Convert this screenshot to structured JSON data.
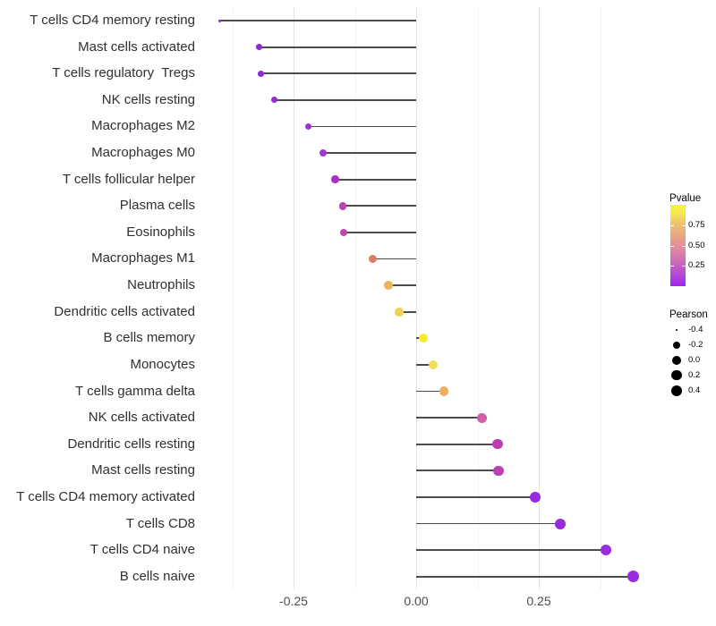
{
  "chart_data": {
    "type": "scatter",
    "variant": "lollipop",
    "title": "",
    "xlabel": "",
    "ylabel": "",
    "xlim": [
      -0.44,
      0.48
    ],
    "x_ticks": [
      {
        "value": -0.25,
        "label": "-0.25"
      },
      {
        "value": 0.0,
        "label": "0.00"
      },
      {
        "value": 0.25,
        "label": "0.25"
      }
    ],
    "grid": "vertical major and minor gridlines, no horizontal gridlines, no axis lines",
    "minor_ticks": [
      -0.375,
      -0.125,
      0.125,
      0.375
    ],
    "points": [
      {
        "label": "T cells CD4 memory resting",
        "pearson": -0.4,
        "color": "#8a2bd5",
        "diameter": 3.0
      },
      {
        "label": "Mast cells activated",
        "pearson": -0.32,
        "color": "#8d2bd2",
        "diameter": 6.6
      },
      {
        "label": "T cells regulatory  Tregs",
        "pearson": -0.316,
        "color": "#8e2cd3",
        "diameter": 6.7
      },
      {
        "label": "NK cells resting",
        "pearson": -0.29,
        "color": "#9130d4",
        "diameter": 7.1
      },
      {
        "label": "Macrophages M2",
        "pearson": -0.22,
        "color": "#9e33d3",
        "diameter": 7.7
      },
      {
        "label": "Macrophages M0",
        "pearson": -0.19,
        "color": "#a436d4",
        "diameter": 8.1
      },
      {
        "label": "T cells follicular helper",
        "pearson": -0.165,
        "color": "#a832c0",
        "diameter": 8.4
      },
      {
        "label": "Plasma cells",
        "pearson": -0.15,
        "color": "#bc42ae",
        "diameter": 8.6
      },
      {
        "label": "Eosinophils",
        "pearson": -0.148,
        "color": "#c248a8",
        "diameter": 8.6
      },
      {
        "label": "Macrophages M1",
        "pearson": -0.088,
        "color": "#e07b63",
        "diameter": 9.2
      },
      {
        "label": "Neutrophils",
        "pearson": -0.057,
        "color": "#edb55c",
        "diameter": 9.5
      },
      {
        "label": "Dendritic cells activated",
        "pearson": -0.035,
        "color": "#f0d155",
        "diameter": 9.7
      },
      {
        "label": "B cells memory",
        "pearson": 0.014,
        "color": "#f6eb2c",
        "diameter": 10.1
      },
      {
        "label": "Monocytes",
        "pearson": 0.035,
        "color": "#f5df55",
        "diameter": 10.3
      },
      {
        "label": "T cells gamma delta",
        "pearson": 0.057,
        "color": "#ebaf5e",
        "diameter": 10.5
      },
      {
        "label": "NK cells activated",
        "pearson": 0.135,
        "color": "#ce5fa9",
        "diameter": 11.0
      },
      {
        "label": "Dendritic cells resting",
        "pearson": 0.166,
        "color": "#b93fb3",
        "diameter": 11.2
      },
      {
        "label": "Mast cells resting",
        "pearson": 0.168,
        "color": "#ba41b5",
        "diameter": 11.2
      },
      {
        "label": "T cells CD4 memory activated",
        "pearson": 0.243,
        "color": "#9a2adf",
        "diameter": 11.7
      },
      {
        "label": "T cells CD8",
        "pearson": 0.294,
        "color": "#9929dd",
        "diameter": 12.0
      },
      {
        "label": "T cells CD4 naive",
        "pearson": 0.387,
        "color": "#9a2be0",
        "diameter": 12.6
      },
      {
        "label": "B cells naive",
        "pearson": 0.443,
        "color": "#9b2be0",
        "diameter": 13.2
      }
    ],
    "legend_pvalue": {
      "title": "Pvalue",
      "range": [
        0,
        1
      ],
      "tick_labels": [
        {
          "value": 0.75,
          "label": "0.75"
        },
        {
          "value": 0.5,
          "label": "0.50"
        },
        {
          "value": 0.25,
          "label": "0.25"
        }
      ],
      "gradient_bottom_to_top": [
        "#a125ee",
        "#d573b2",
        "#e39097",
        "#f1c966",
        "#f8f63c"
      ]
    },
    "legend_pearson": {
      "title": "Pearson",
      "items": [
        {
          "label": "-0.4",
          "diameter": 2.5
        },
        {
          "label": "-0.2",
          "diameter": 8.0
        },
        {
          "label": "0.0",
          "diameter": 10.0
        },
        {
          "label": "0.2",
          "diameter": 11.3
        },
        {
          "label": "0.4",
          "diameter": 12.7
        }
      ],
      "dot_color": "#000000"
    }
  }
}
